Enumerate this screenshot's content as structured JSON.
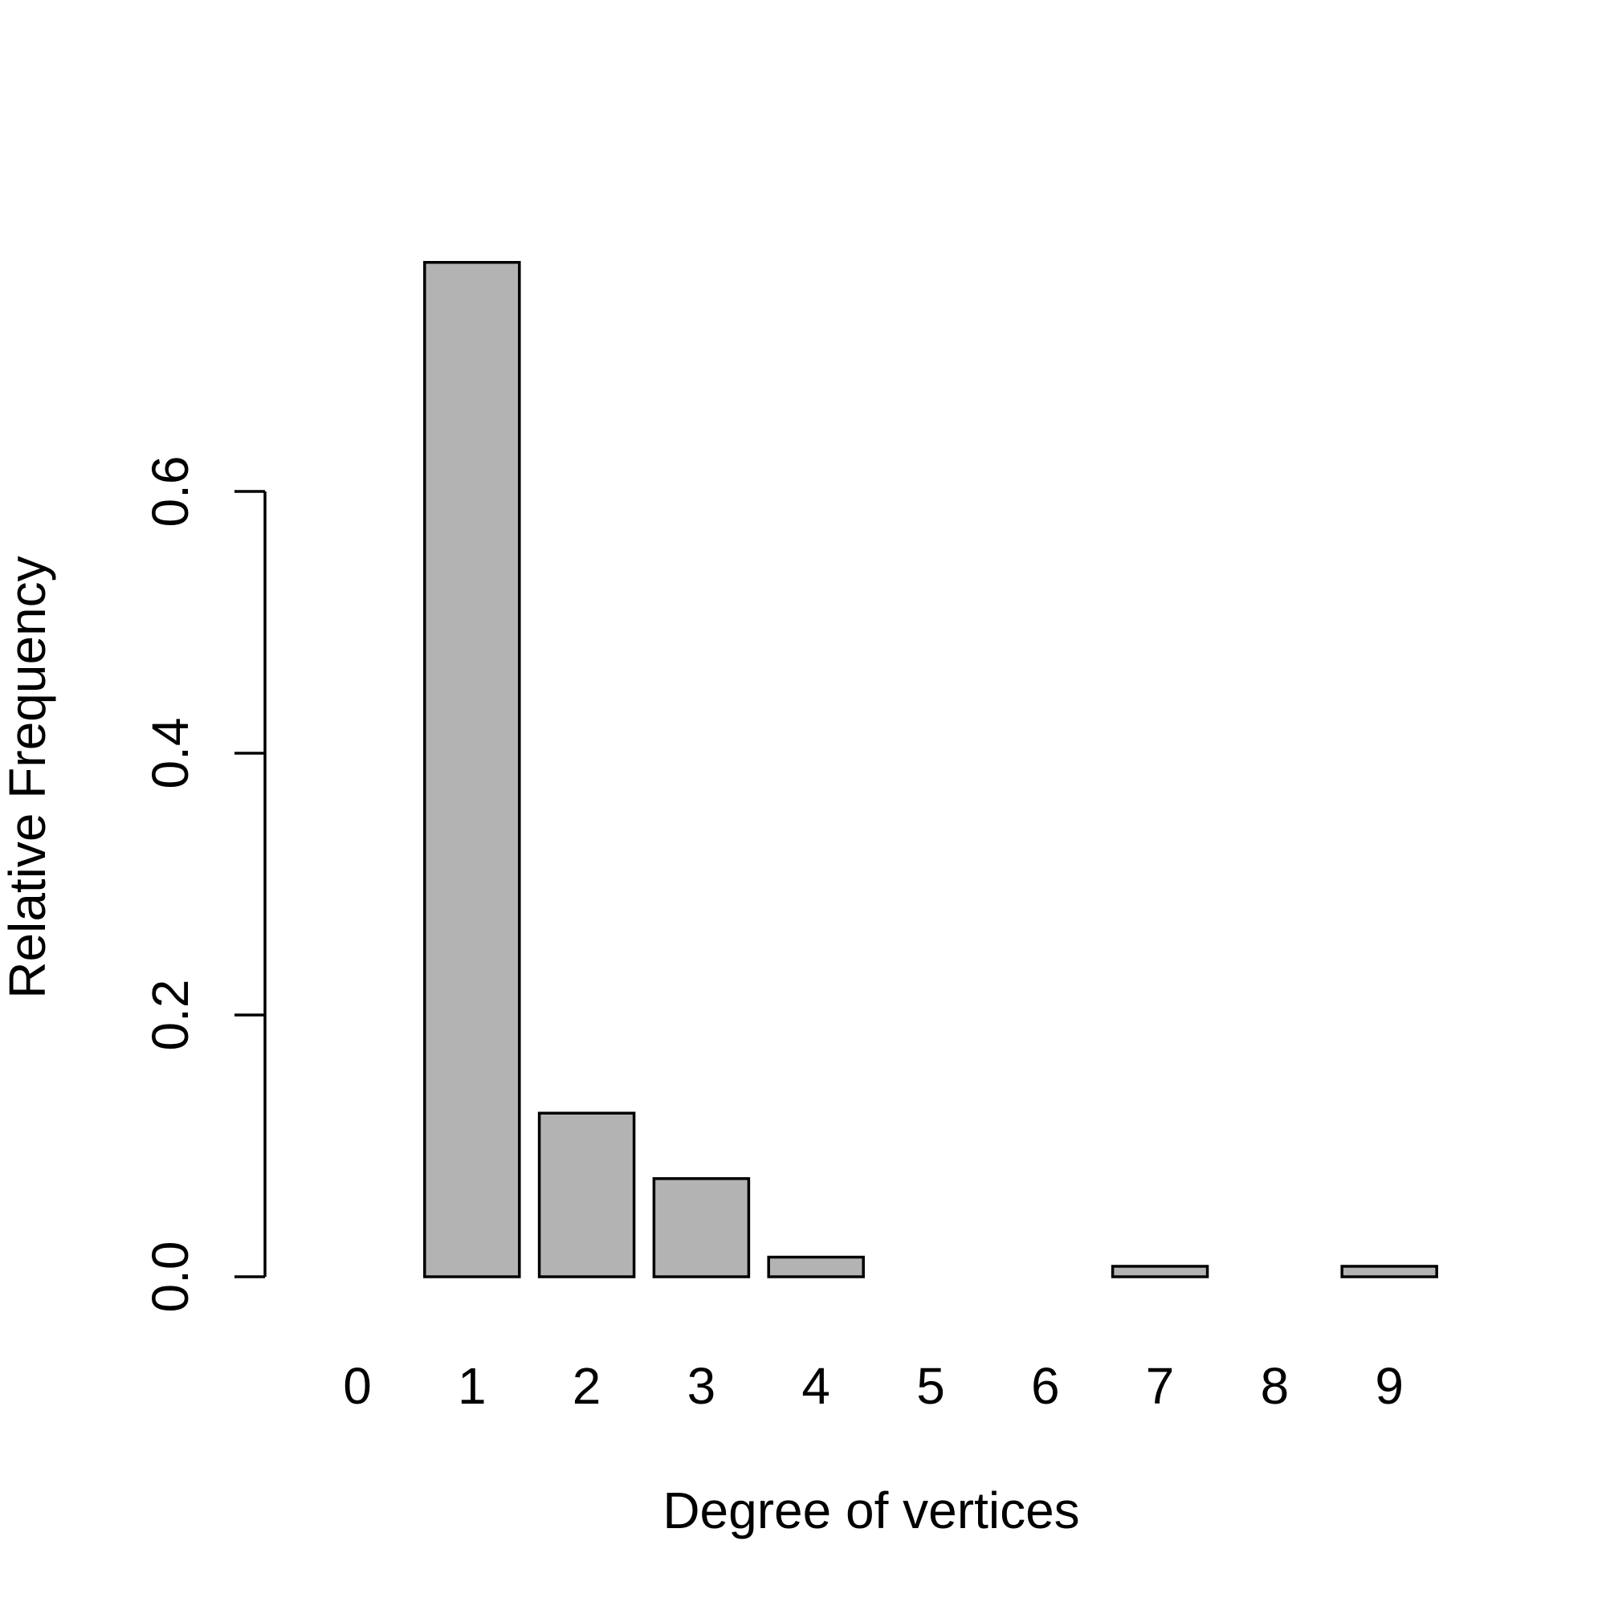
{
  "chart_data": {
    "type": "bar",
    "title": "",
    "xlabel": "Degree of vertices",
    "ylabel": "Relative Frequency",
    "categories": [
      "0",
      "1",
      "2",
      "3",
      "4",
      "5",
      "6",
      "7",
      "8",
      "9"
    ],
    "values": [
      0.0,
      0.775,
      0.125,
      0.075,
      0.015,
      0.0,
      0.0,
      0.008,
      0.0,
      0.008
    ],
    "ylim": [
      0,
      0.8
    ],
    "yticks": [
      0.0,
      0.2,
      0.4,
      0.6
    ],
    "ytick_labels": [
      "0.0",
      "0.2",
      "0.4",
      "0.6"
    ],
    "grid": false,
    "legend": "none",
    "colors": {
      "bar_fill": "#b3b3b3",
      "bar_stroke": "#000000",
      "axis": "#000000",
      "background": "#ffffff"
    }
  }
}
